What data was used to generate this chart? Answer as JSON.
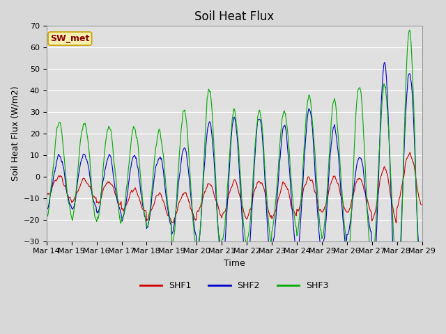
{
  "title": "Soil Heat Flux",
  "ylabel": "Soil Heat Flux (W/m2)",
  "xlabel": "Time",
  "annotation_text": "SW_met",
  "ylim": [
    -30,
    70
  ],
  "yticks": [
    -30,
    -20,
    -10,
    0,
    10,
    20,
    30,
    40,
    50,
    60,
    70
  ],
  "xtick_labels": [
    "Mar 14",
    "Mar 15",
    "Mar 16",
    "Mar 17",
    "Mar 18",
    "Mar 19",
    "Mar 20",
    "Mar 21",
    "Mar 22",
    "Mar 23",
    "Mar 24",
    "Mar 25",
    "Mar 26",
    "Mar 27",
    "Mar 28",
    "Mar 29"
  ],
  "series_colors": [
    "#cc0000",
    "#0000cc",
    "#00aa00"
  ],
  "series_names": [
    "SHF1",
    "SHF2",
    "SHF3"
  ],
  "fig_facecolor": "#d8d8d8",
  "ax_facecolor": "#e0e0e0",
  "title_fontsize": 12,
  "label_fontsize": 9,
  "tick_fontsize": 8
}
